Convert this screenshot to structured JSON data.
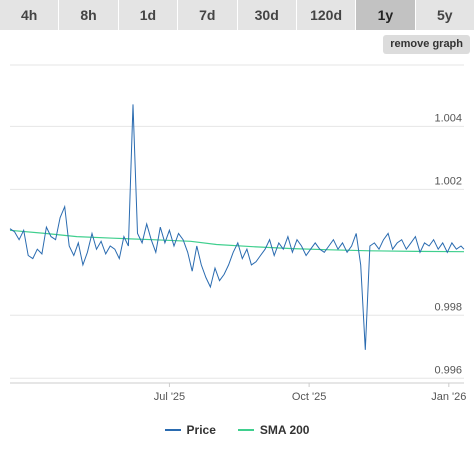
{
  "tabs": [
    {
      "label": "4h",
      "active": false
    },
    {
      "label": "8h",
      "active": false
    },
    {
      "label": "1d",
      "active": false
    },
    {
      "label": "7d",
      "active": false
    },
    {
      "label": "30d",
      "active": false
    },
    {
      "label": "120d",
      "active": false
    },
    {
      "label": "1y",
      "active": true
    },
    {
      "label": "5y",
      "active": false
    }
  ],
  "remove_graph_label": "remove graph",
  "colors": {
    "price": "#2a6bb0",
    "sma": "#3fcf8e",
    "grid": "#e6e6e6"
  },
  "chart_data": {
    "type": "line",
    "title": "",
    "xlabel": "",
    "ylabel": "",
    "x_range": [
      "2025-03-18",
      "2026-01-11"
    ],
    "ylim": [
      0.99585,
      1.00595
    ],
    "y_ticks": [
      {
        "value": 0.996,
        "label": "0.996"
      },
      {
        "value": 0.998,
        "label": "0.998"
      },
      {
        "value": 1.002,
        "label": "1.002"
      },
      {
        "value": 1.004,
        "label": "1.004"
      }
    ],
    "x_ticks": [
      {
        "date": "2025-07-01",
        "label": "Jul '25"
      },
      {
        "date": "2025-10-01",
        "label": "Oct '25"
      },
      {
        "date": "2026-01-01",
        "label": "Jan '26"
      }
    ],
    "grid": true,
    "legend_position": "bottom-center",
    "series": [
      {
        "name": "Price",
        "points": [
          [
            "2025-03-18",
            1.00075
          ],
          [
            "2025-03-21",
            1.00065
          ],
          [
            "2025-03-24",
            1.0004
          ],
          [
            "2025-03-27",
            1.0007
          ],
          [
            "2025-03-30",
            0.9999
          ],
          [
            "2025-04-02",
            0.9998
          ],
          [
            "2025-04-05",
            1.0001
          ],
          [
            "2025-04-08",
            0.99995
          ],
          [
            "2025-04-11",
            1.0008
          ],
          [
            "2025-04-14",
            1.0005
          ],
          [
            "2025-04-17",
            1.0004
          ],
          [
            "2025-04-20",
            1.0011
          ],
          [
            "2025-04-23",
            1.00145
          ],
          [
            "2025-04-26",
            1.0002
          ],
          [
            "2025-04-29",
            0.9999
          ],
          [
            "2025-05-02",
            1.0003
          ],
          [
            "2025-05-05",
            0.9996
          ],
          [
            "2025-05-08",
            1.0
          ],
          [
            "2025-05-11",
            1.0006
          ],
          [
            "2025-05-14",
            1.0001
          ],
          [
            "2025-05-17",
            1.00035
          ],
          [
            "2025-05-20",
            0.99995
          ],
          [
            "2025-05-23",
            1.0002
          ],
          [
            "2025-05-26",
            1.0001
          ],
          [
            "2025-05-29",
            0.9998
          ],
          [
            "2025-06-01",
            1.0005
          ],
          [
            "2025-06-04",
            1.0002
          ],
          [
            "2025-06-07",
            1.0047
          ],
          [
            "2025-06-10",
            1.0006
          ],
          [
            "2025-06-13",
            1.0003
          ],
          [
            "2025-06-16",
            1.0009
          ],
          [
            "2025-06-19",
            1.0004
          ],
          [
            "2025-06-22",
            1.0
          ],
          [
            "2025-06-25",
            1.0008
          ],
          [
            "2025-06-28",
            1.0003
          ],
          [
            "2025-07-01",
            1.0007
          ],
          [
            "2025-07-04",
            1.0002
          ],
          [
            "2025-07-07",
            1.0006
          ],
          [
            "2025-07-10",
            1.0004
          ],
          [
            "2025-07-13",
            1.0
          ],
          [
            "2025-07-16",
            0.9994
          ],
          [
            "2025-07-19",
            1.0002
          ],
          [
            "2025-07-22",
            0.9996
          ],
          [
            "2025-07-25",
            0.9992
          ],
          [
            "2025-07-28",
            0.9989
          ],
          [
            "2025-07-31",
            0.9995
          ],
          [
            "2025-08-03",
            0.9991
          ],
          [
            "2025-08-06",
            0.9993
          ],
          [
            "2025-08-09",
            0.9996
          ],
          [
            "2025-08-12",
            1.0
          ],
          [
            "2025-08-15",
            1.0003
          ],
          [
            "2025-08-18",
            0.9998
          ],
          [
            "2025-08-21",
            1.0001
          ],
          [
            "2025-08-24",
            0.9996
          ],
          [
            "2025-08-27",
            0.9997
          ],
          [
            "2025-08-30",
            0.9999
          ],
          [
            "2025-09-02",
            1.0001
          ],
          [
            "2025-09-05",
            1.0004
          ],
          [
            "2025-09-08",
            0.9999
          ],
          [
            "2025-09-11",
            1.0003
          ],
          [
            "2025-09-14",
            1.0001
          ],
          [
            "2025-09-17",
            1.0005
          ],
          [
            "2025-09-20",
            1.0
          ],
          [
            "2025-09-23",
            1.0004
          ],
          [
            "2025-09-26",
            1.0002
          ],
          [
            "2025-09-29",
            0.9999
          ],
          [
            "2025-10-02",
            1.0001
          ],
          [
            "2025-10-05",
            1.0003
          ],
          [
            "2025-10-08",
            1.0001
          ],
          [
            "2025-10-11",
            1.0
          ],
          [
            "2025-10-14",
            1.0002
          ],
          [
            "2025-10-17",
            1.0004
          ],
          [
            "2025-10-20",
            1.0001
          ],
          [
            "2025-10-23",
            1.0003
          ],
          [
            "2025-10-26",
            1.0
          ],
          [
            "2025-10-29",
            1.0002
          ],
          [
            "2025-11-01",
            1.0006
          ],
          [
            "2025-11-04",
            0.9996
          ],
          [
            "2025-11-07",
            0.9969
          ],
          [
            "2025-11-10",
            1.0002
          ],
          [
            "2025-11-13",
            1.0003
          ],
          [
            "2025-11-16",
            1.0001
          ],
          [
            "2025-11-19",
            1.0004
          ],
          [
            "2025-11-22",
            1.0006
          ],
          [
            "2025-11-25",
            1.0001
          ],
          [
            "2025-11-28",
            1.0003
          ],
          [
            "2025-12-01",
            1.0004
          ],
          [
            "2025-12-04",
            1.0001
          ],
          [
            "2025-12-07",
            1.0003
          ],
          [
            "2025-12-10",
            1.0005
          ],
          [
            "2025-12-13",
            1.0
          ],
          [
            "2025-12-16",
            1.0003
          ],
          [
            "2025-12-19",
            1.0002
          ],
          [
            "2025-12-22",
            1.0004
          ],
          [
            "2025-12-25",
            1.0001
          ],
          [
            "2025-12-28",
            1.0003
          ],
          [
            "2025-12-31",
            1.0
          ],
          [
            "2026-01-03",
            1.0003
          ],
          [
            "2026-01-06",
            1.0001
          ],
          [
            "2026-01-09",
            1.0002
          ],
          [
            "2026-01-11",
            1.0001
          ]
        ]
      },
      {
        "name": "SMA 200",
        "points": [
          [
            "2025-03-18",
            1.0007
          ],
          [
            "2025-04-10",
            1.0006
          ],
          [
            "2025-05-01",
            1.0005
          ],
          [
            "2025-05-25",
            1.00045
          ],
          [
            "2025-06-20",
            1.0004
          ],
          [
            "2025-07-15",
            1.00035
          ],
          [
            "2025-08-01",
            1.00025
          ],
          [
            "2025-08-25",
            1.00018
          ],
          [
            "2025-09-20",
            1.00012
          ],
          [
            "2025-10-15",
            1.00008
          ],
          [
            "2025-11-10",
            1.00005
          ],
          [
            "2025-12-10",
            1.00003
          ],
          [
            "2026-01-11",
            1.00002
          ]
        ]
      }
    ]
  }
}
